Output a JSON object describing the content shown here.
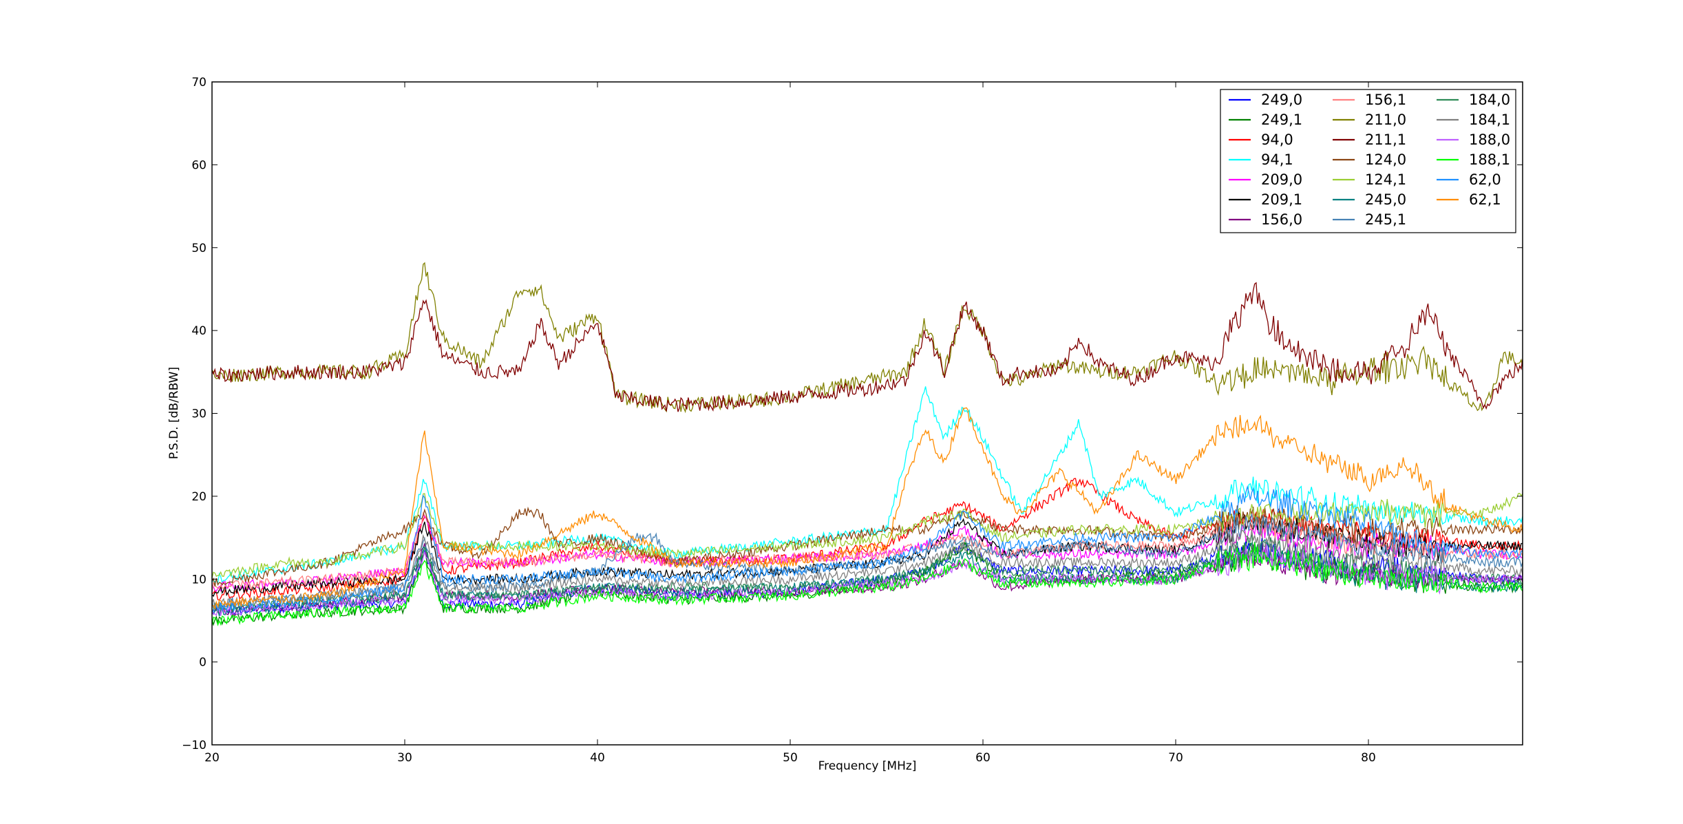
{
  "chart_data": {
    "type": "line",
    "xlabel": "Frequency [MHz]",
    "ylabel": "P.S.D. [dB/RBW]",
    "xlim": [
      20,
      88
    ],
    "ylim": [
      -10,
      70
    ],
    "xticks": [
      20,
      30,
      40,
      50,
      60,
      70,
      80
    ],
    "yticks": [
      -10,
      0,
      10,
      20,
      30,
      40,
      50,
      60,
      70
    ],
    "grid": false,
    "legend_position": "top-right",
    "legend_columns": 3,
    "series": [
      {
        "name": "249,0",
        "color": "#0000ff",
        "x": [
          20,
          26,
          30,
          31,
          32,
          36,
          40,
          44,
          50,
          55,
          57,
          59,
          61,
          65,
          70,
          74,
          78,
          82,
          86,
          88
        ],
        "y": [
          6,
          6.8,
          7.2,
          13,
          7,
          7,
          9,
          8,
          8.5,
          10,
          11,
          14,
          11,
          11,
          11,
          14,
          12,
          11,
          10,
          10
        ]
      },
      {
        "name": "249,1",
        "color": "#008000",
        "x": [
          20,
          26,
          30,
          31,
          32,
          36,
          40,
          44,
          50,
          55,
          57,
          59,
          61,
          65,
          70,
          74,
          78,
          82,
          86,
          88
        ],
        "y": [
          5,
          6,
          6.5,
          13,
          6.5,
          6.5,
          8.5,
          7.5,
          8,
          9.5,
          11,
          14,
          10,
          10,
          10.5,
          13,
          11,
          10,
          9,
          9
        ]
      },
      {
        "name": "94,0",
        "color": "#ff0000",
        "x": [
          20,
          26,
          30,
          31,
          32,
          36,
          40,
          44,
          50,
          55,
          57,
          59,
          61,
          65,
          68,
          70,
          74,
          78,
          82,
          86,
          88
        ],
        "y": [
          8,
          9,
          10,
          18,
          11,
          12,
          14,
          12,
          12.5,
          14,
          17,
          19,
          16,
          22,
          17,
          15,
          18,
          16,
          15,
          14,
          14
        ]
      },
      {
        "name": "94,1",
        "color": "#00ffff",
        "x": [
          20,
          26,
          30,
          31,
          32,
          36,
          40,
          44,
          50,
          55,
          57,
          58,
          59,
          60,
          62,
          64,
          65,
          66,
          68,
          70,
          74,
          78,
          82,
          86,
          88
        ],
        "y": [
          10,
          12,
          14,
          22,
          14,
          14,
          15,
          13,
          14.5,
          16,
          33,
          27,
          31,
          27,
          18,
          25,
          29,
          20,
          22,
          18,
          21,
          19,
          18,
          17,
          17
        ]
      },
      {
        "name": "209,0",
        "color": "#ff00ff",
        "x": [
          20,
          26,
          30,
          31,
          32,
          36,
          40,
          44,
          50,
          55,
          57,
          59,
          61,
          65,
          70,
          74,
          78,
          82,
          86,
          88
        ],
        "y": [
          9,
          10,
          11,
          18,
          12,
          12,
          13,
          12,
          12.5,
          13,
          14,
          16,
          13,
          13,
          13,
          16,
          14,
          14,
          13,
          13
        ]
      },
      {
        "name": "209,1",
        "color": "#000000",
        "x": [
          20,
          26,
          30,
          31,
          32,
          36,
          40,
          44,
          50,
          55,
          57,
          59,
          61,
          65,
          70,
          74,
          78,
          82,
          86,
          88
        ],
        "y": [
          8.5,
          9.5,
          10,
          17,
          10,
          10,
          11,
          10.5,
          11,
          12,
          13,
          17,
          13,
          14,
          13.5,
          17,
          15,
          14,
          14,
          14
        ]
      },
      {
        "name": "156,0",
        "color": "#800080",
        "x": [
          20,
          26,
          30,
          31,
          32,
          36,
          40,
          44,
          50,
          55,
          57,
          59,
          61,
          65,
          70,
          74,
          78,
          82,
          86,
          88
        ],
        "y": [
          6,
          7,
          8,
          14,
          8,
          8,
          9,
          8.5,
          8.5,
          9,
          10,
          12,
          9,
          10,
          10,
          13,
          11,
          10,
          10,
          10
        ]
      },
      {
        "name": "156,1",
        "color": "#ff8080",
        "x": [
          20,
          26,
          30,
          31,
          32,
          36,
          40,
          44,
          50,
          55,
          57,
          59,
          61,
          65,
          70,
          74,
          78,
          82,
          86,
          88
        ],
        "y": [
          9,
          10,
          11,
          18,
          12,
          12,
          13,
          12,
          12.5,
          13,
          14,
          15,
          13,
          14,
          14,
          17,
          15,
          14,
          13,
          13
        ]
      },
      {
        "name": "211,0",
        "color": "#808000",
        "x": [
          20,
          24,
          28,
          30,
          31,
          32,
          34,
          36,
          37,
          38,
          40,
          41,
          44,
          48,
          50,
          54,
          56,
          57,
          58,
          59,
          60,
          61,
          62,
          64,
          66,
          68,
          70,
          72,
          74,
          76,
          78,
          80,
          82,
          83,
          84,
          86,
          87,
          88
        ],
        "y": [
          34.5,
          35,
          35,
          37,
          48,
          39,
          36,
          45,
          45,
          39,
          42,
          32,
          31,
          31.5,
          32,
          34,
          35,
          41,
          35,
          43,
          40,
          34,
          34,
          36,
          35,
          35,
          37,
          34,
          35,
          35,
          34,
          35,
          36,
          37,
          34,
          30,
          37,
          36
        ]
      },
      {
        "name": "211,1",
        "color": "#800000",
        "x": [
          20,
          24,
          28,
          30,
          31,
          32,
          34,
          36,
          37,
          38,
          40,
          41,
          44,
          48,
          50,
          54,
          56,
          57,
          58,
          59,
          60,
          61,
          62,
          64,
          65,
          66,
          68,
          70,
          72,
          74,
          75,
          76,
          78,
          80,
          82,
          83,
          84,
          86,
          87,
          88
        ],
        "y": [
          34.5,
          35,
          35,
          36,
          44,
          37,
          35,
          35,
          41,
          36,
          41,
          32,
          31,
          31.5,
          32,
          33,
          34,
          40,
          35,
          43,
          40,
          34,
          35,
          35,
          39,
          36,
          34,
          37,
          36,
          45,
          40,
          38,
          35,
          35,
          38,
          42.5,
          38,
          31,
          34,
          36
        ]
      },
      {
        "name": "124,0",
        "color": "#8b4513",
        "x": [
          20,
          26,
          30,
          31,
          32,
          34,
          36,
          37,
          38,
          40,
          44,
          50,
          55,
          57,
          59,
          61,
          65,
          70,
          74,
          78,
          82,
          86,
          88
        ],
        "y": [
          9.5,
          12,
          16,
          18,
          14,
          13,
          18,
          18,
          14,
          15,
          12,
          14,
          16,
          16,
          18,
          16,
          16,
          15,
          18,
          16,
          16,
          16,
          16
        ]
      },
      {
        "name": "124,1",
        "color": "#9acd32",
        "x": [
          20,
          24,
          26,
          30,
          31,
          32,
          36,
          40,
          44,
          50,
          55,
          57,
          59,
          61,
          65,
          70,
          74,
          78,
          82,
          86,
          88
        ],
        "y": [
          10.5,
          12,
          12,
          14,
          20,
          14,
          14,
          14,
          13,
          14,
          15,
          17,
          18,
          15,
          16,
          16,
          18,
          18,
          18,
          18,
          20
        ]
      },
      {
        "name": "245,0",
        "color": "#008080",
        "x": [
          20,
          26,
          30,
          31,
          32,
          36,
          40,
          44,
          50,
          55,
          57,
          59,
          61,
          65,
          70,
          74,
          78,
          82,
          86,
          88
        ],
        "y": [
          6,
          7,
          8,
          14,
          8,
          8,
          9,
          8.5,
          9,
          10,
          11,
          13,
          10,
          10,
          10,
          14,
          11,
          10,
          9,
          9
        ]
      },
      {
        "name": "245,1",
        "color": "#4682b4",
        "x": [
          20,
          26,
          30,
          31,
          32,
          36,
          40,
          42,
          43,
          44,
          50,
          55,
          57,
          59,
          61,
          65,
          70,
          74,
          78,
          82,
          86,
          88
        ],
        "y": [
          7,
          8,
          9,
          15,
          9,
          9,
          11,
          15,
          15,
          12,
          11,
          12,
          13,
          15,
          13,
          14,
          13,
          17,
          15,
          13,
          12,
          12
        ]
      },
      {
        "name": "184,0",
        "color": "#2e8b57",
        "x": [
          20,
          26,
          30,
          31,
          32,
          36,
          40,
          44,
          50,
          55,
          57,
          59,
          61,
          65,
          70,
          74,
          78,
          82,
          86,
          88
        ],
        "y": [
          6.5,
          7.5,
          8,
          14,
          8,
          8,
          9,
          9,
          9,
          10,
          11,
          14,
          11,
          11,
          11,
          14,
          12,
          11,
          10,
          10
        ]
      },
      {
        "name": "184,1",
        "color": "#808080",
        "x": [
          20,
          26,
          30,
          31,
          32,
          36,
          40,
          44,
          50,
          55,
          57,
          59,
          61,
          65,
          70,
          74,
          78,
          82,
          86,
          88
        ],
        "y": [
          7,
          8,
          9,
          15,
          9,
          9,
          10,
          9.5,
          10,
          11,
          12,
          14,
          12,
          12,
          12,
          15,
          13,
          12,
          11,
          11
        ]
      },
      {
        "name": "188,0",
        "color": "#bf5fff",
        "x": [
          20,
          26,
          30,
          31,
          32,
          36,
          40,
          44,
          50,
          55,
          57,
          59,
          61,
          65,
          70,
          74,
          78,
          82,
          86,
          88
        ],
        "y": [
          6,
          7,
          7.5,
          13,
          7.5,
          7.5,
          8.5,
          8,
          8.5,
          9.5,
          10,
          12,
          10,
          10,
          10,
          13,
          11,
          10,
          10,
          10
        ]
      },
      {
        "name": "188,1",
        "color": "#00ff00",
        "x": [
          20,
          26,
          30,
          31,
          32,
          36,
          40,
          44,
          50,
          55,
          57,
          59,
          61,
          65,
          70,
          74,
          78,
          82,
          86,
          88
        ],
        "y": [
          5,
          6,
          6.5,
          12,
          6.5,
          6.5,
          8,
          7.5,
          8,
          9,
          10,
          12,
          9.5,
          9.5,
          10,
          13,
          11,
          10,
          9,
          9
        ]
      },
      {
        "name": "62,0",
        "color": "#1e90ff",
        "x": [
          20,
          26,
          30,
          31,
          32,
          36,
          40,
          44,
          50,
          55,
          57,
          59,
          61,
          65,
          70,
          74,
          78,
          82,
          86,
          88
        ],
        "y": [
          6.5,
          7.5,
          9,
          20,
          10,
          10,
          11,
          10,
          11,
          12,
          14,
          18,
          14,
          15,
          15,
          20,
          18,
          15,
          13,
          13
        ]
      },
      {
        "name": "62,1",
        "color": "#ff8c00",
        "x": [
          20,
          26,
          30,
          31,
          32,
          36,
          40,
          44,
          50,
          55,
          56,
          57,
          58,
          59,
          60,
          61,
          62,
          64,
          66,
          68,
          70,
          72,
          74,
          76,
          78,
          80,
          82,
          84,
          86,
          88
        ],
        "y": [
          7,
          8,
          11,
          28,
          14,
          13,
          18,
          12,
          12,
          14,
          22,
          28,
          24,
          31,
          26,
          20,
          18,
          23,
          18,
          25,
          22,
          27,
          29,
          26,
          24,
          22,
          24,
          19,
          17,
          16
        ]
      }
    ]
  }
}
